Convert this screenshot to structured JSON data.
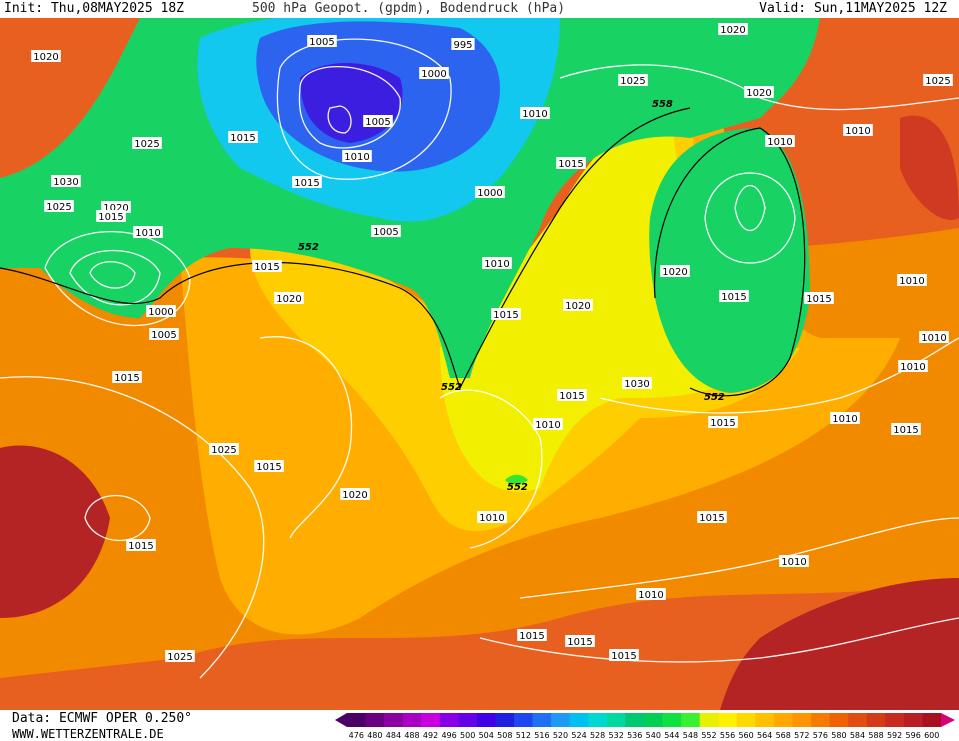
{
  "header": {
    "init": "Init: Thu,08MAY2025 18Z",
    "title": "500 hPa Geopot. (gpdm), Bodendruck (hPa)",
    "valid": "Valid: Sun,11MAY2025 12Z"
  },
  "footer": {
    "data_source": "Data: ECMWF OPER 0.250°",
    "website": "WWW.WETTERZENTRALE.DE"
  },
  "legend": {
    "levels": [
      "476",
      "480",
      "484",
      "488",
      "492",
      "496",
      "500",
      "504",
      "508",
      "512",
      "516",
      "520",
      "524",
      "528",
      "532",
      "536",
      "540",
      "544",
      "548",
      "552",
      "556",
      "560",
      "564",
      "568",
      "572",
      "576",
      "580",
      "584",
      "588",
      "592",
      "596",
      "600"
    ],
    "colors": [
      "#4b0066",
      "#6a0080",
      "#8a00a0",
      "#a800c0",
      "#c800e0",
      "#8a00e6",
      "#6600e6",
      "#4000e6",
      "#2020e0",
      "#2046f0",
      "#2070f4",
      "#1e9af6",
      "#00c0f0",
      "#00d8d0",
      "#00d8a0",
      "#00c870",
      "#00d050",
      "#10e040",
      "#3af030",
      "#e6f000",
      "#fff000",
      "#ffd800",
      "#ffc000",
      "#ffa800",
      "#ff9400",
      "#f67a00",
      "#ee6000",
      "#e24c10",
      "#d43a18",
      "#c82a20",
      "#b81e24",
      "#a8101e"
    ]
  },
  "map": {
    "fill_colors": {
      "deep_low": "#3c1ee0",
      "low_blue": "#2c64f0",
      "cyan": "#12c8ee",
      "green": "#18d264",
      "bright_green": "#34e632",
      "yellow": "#f2f000",
      "gold": "#ffce00",
      "orange": "#ffae00",
      "dark_orange": "#f28a00",
      "red_orange": "#e86020",
      "red": "#d03a22",
      "dark_red": "#b42424"
    },
    "geopotential_labels": [
      "558",
      "552",
      "552",
      "552",
      "552"
    ],
    "pressure_labels": [
      "1020",
      "1005",
      "995",
      "1000",
      "1020",
      "1025",
      "1005",
      "1010",
      "1010",
      "1025",
      "1015",
      "1015",
      "1030",
      "1025",
      "1020",
      "1015",
      "1010",
      "1000",
      "1005",
      "1015",
      "1020",
      "1015",
      "1020",
      "1010",
      "1005",
      "1000",
      "1010",
      "1015",
      "1015",
      "1020",
      "1010",
      "1025",
      "1020",
      "1015",
      "1015",
      "1010",
      "1010",
      "1010",
      "1025",
      "1015",
      "1020",
      "1015",
      "1030",
      "1015",
      "1010",
      "1015",
      "1010",
      "1015",
      "1010",
      "1015",
      "1010",
      "1025",
      "1015",
      "1015",
      "1015",
      "1010"
    ]
  }
}
